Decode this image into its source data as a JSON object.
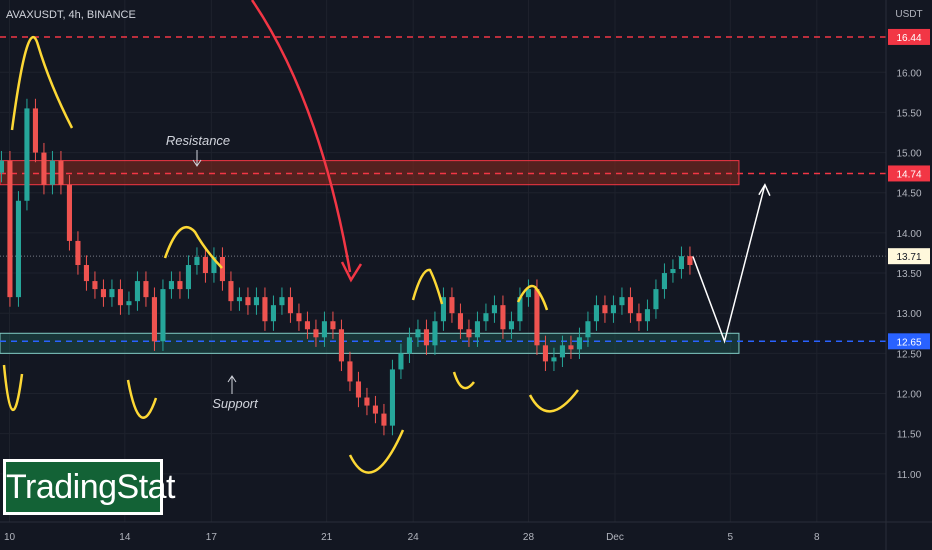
{
  "header": {
    "symbol": "AVAXUSDT, 4h, BINANCE"
  },
  "branding": {
    "logo_text": "TradingStat"
  },
  "colors": {
    "background": "#131722",
    "up": "#26a69a",
    "down": "#ef5350",
    "grid": "#1e222d",
    "resistance_fill": "#8b2a1e",
    "support_fill": "#1f5a55",
    "projection": "#ffffff",
    "annotation_arrow": "#f23645",
    "swing_marks": "#fdd835"
  },
  "chart_data": {
    "type": "candlestick",
    "symbol": "AVAXUSDT",
    "timeframe": "4h",
    "exchange": "BINANCE",
    "y_unit": "USDT",
    "y_ticks": [
      "11.00",
      "11.50",
      "12.00",
      "12.50",
      "13.00",
      "13.50",
      "14.00",
      "14.50",
      "15.00",
      "15.50",
      "16.00"
    ],
    "ylim": [
      10.4,
      16.9
    ],
    "x_labels": [
      "10",
      "14",
      "17",
      "21",
      "24",
      "28",
      "Dec",
      "5",
      "8"
    ],
    "x_label_days": [
      10,
      14,
      17,
      21,
      24,
      28,
      31,
      35,
      38
    ],
    "x_range_days": [
      9.67,
      40.4
    ],
    "last_price": 13.71,
    "horizontal_levels": [
      {
        "price": 16.44,
        "label": "16.44",
        "color": "#f23645"
      },
      {
        "price": 14.74,
        "label": "14.74",
        "color": "#f23645"
      },
      {
        "price": 12.65,
        "label": "12.65",
        "color": "#2962ff"
      }
    ],
    "zones": [
      {
        "name": "Resistance",
        "low": 14.6,
        "high": 14.9
      },
      {
        "name": "Support",
        "low": 12.5,
        "high": 12.75
      }
    ],
    "annotations": [
      "Resistance",
      "Support"
    ],
    "projection_path": [
      {
        "day": 33.7,
        "price": 13.71
      },
      {
        "day": 34.8,
        "price": 12.65
      },
      {
        "day": 36.2,
        "price": 14.6
      }
    ],
    "closes": [
      14.9,
      13.2,
      14.4,
      15.55,
      15.0,
      14.6,
      14.9,
      14.6,
      13.9,
      13.6,
      13.4,
      13.3,
      13.2,
      13.3,
      13.1,
      13.15,
      13.4,
      13.2,
      12.65,
      13.3,
      13.4,
      13.3,
      13.6,
      13.7,
      13.5,
      13.7,
      13.4,
      13.15,
      13.2,
      13.1,
      13.2,
      12.9,
      13.1,
      13.2,
      13.0,
      12.9,
      12.8,
      12.7,
      12.9,
      12.8,
      12.4,
      12.15,
      11.95,
      11.85,
      11.75,
      11.6,
      12.3,
      12.5,
      12.7,
      12.8,
      12.6,
      12.9,
      13.2,
      13.0,
      12.8,
      12.7,
      12.9,
      13.0,
      13.1,
      12.8,
      12.9,
      13.2,
      13.3,
      12.6,
      12.4,
      12.45,
      12.6,
      12.55,
      12.7,
      12.9,
      13.1,
      13.0,
      13.1,
      13.2,
      13.0,
      12.9,
      13.05,
      13.3,
      13.5,
      13.55,
      13.71,
      13.6
    ]
  }
}
